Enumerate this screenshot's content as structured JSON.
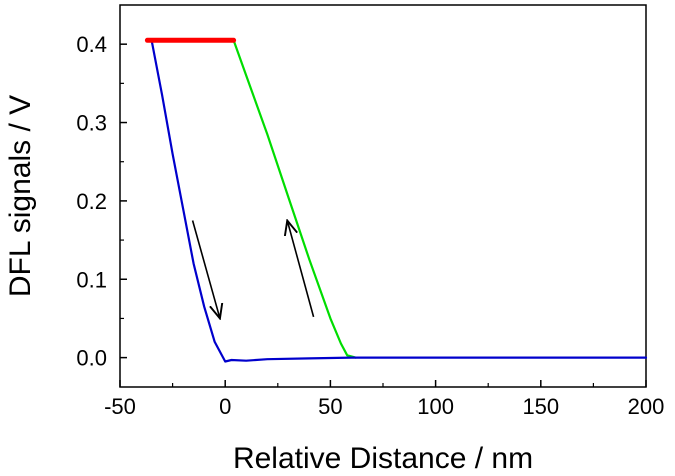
{
  "chart_data": {
    "type": "line",
    "xlabel": "Relative Distance / nm",
    "ylabel": "DFL signals / V",
    "xlim": [
      -50,
      200
    ],
    "ylim": [
      -0.0375,
      0.45
    ],
    "x_ticks": [
      -50,
      0,
      50,
      100,
      150,
      200
    ],
    "x_tick_labels": [
      "-50",
      "0",
      "50",
      "100",
      "150",
      "200"
    ],
    "y_ticks": [
      0.0,
      0.1,
      0.2,
      0.3,
      0.4
    ],
    "y_tick_labels": [
      "0.0",
      "0.1",
      "0.2",
      "0.3",
      "0.4"
    ],
    "grid": false,
    "series": [
      {
        "color": "#ff0000",
        "x": [
          -37,
          -30,
          -20,
          -10,
          0,
          4
        ],
        "y": [
          0.405,
          0.405,
          0.405,
          0.405,
          0.405,
          0.405
        ]
      },
      {
        "color": "#00dd00",
        "x": [
          4,
          10,
          20,
          30,
          40,
          50,
          55,
          58,
          62
        ],
        "y": [
          0.405,
          0.36,
          0.285,
          0.205,
          0.125,
          0.05,
          0.018,
          0.003,
          0.0
        ]
      },
      {
        "color": "#0000cc",
        "x": [
          -35,
          -30,
          -25,
          -20,
          -15,
          -10,
          -5,
          0,
          3,
          10,
          20,
          40,
          60,
          100,
          150,
          200
        ],
        "y": [
          0.405,
          0.335,
          0.26,
          0.19,
          0.12,
          0.065,
          0.02,
          -0.005,
          -0.003,
          -0.004,
          -0.002,
          -0.001,
          0.0,
          0.0,
          0.0,
          0.0
        ]
      }
    ],
    "annotations": [
      {
        "type": "arrow",
        "from": [
          -15.5,
          0.175
        ],
        "to": [
          -2.5,
          0.05
        ],
        "meaning": "approach"
      },
      {
        "type": "arrow",
        "from": [
          42,
          0.052
        ],
        "to": [
          29.5,
          0.175
        ],
        "meaning": "retract"
      }
    ]
  }
}
